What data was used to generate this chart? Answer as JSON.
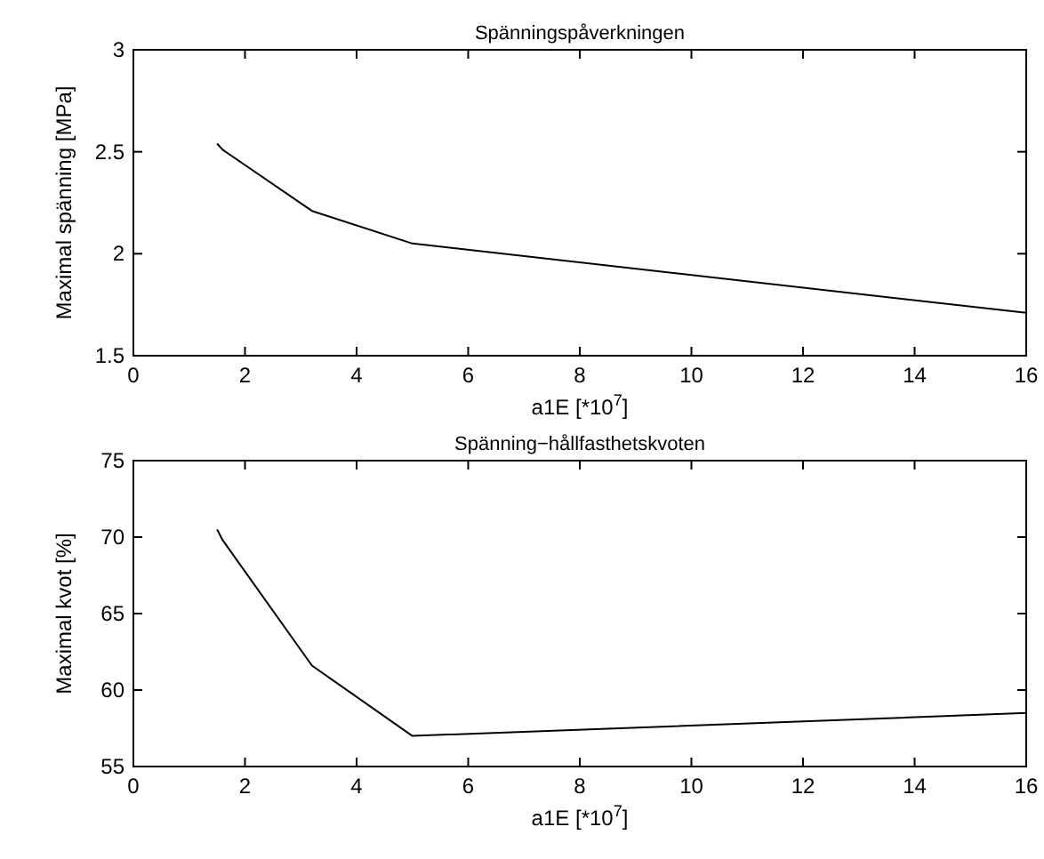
{
  "chart_data": [
    {
      "type": "line",
      "title": "Spänningspåverkningen",
      "xlabel": "a1E [*10$^{7}$]",
      "ylabel": "Maximal spänning [MPa]",
      "x": [
        1.5,
        1.6,
        3.2,
        5,
        16
      ],
      "series": [
        {
          "color": "#000000",
          "values": [
            2.54,
            2.51,
            2.21,
            2.05,
            1.71
          ]
        }
      ],
      "xlim": [
        0,
        16
      ],
      "xticks": [
        0,
        2,
        4,
        6,
        8,
        10,
        12,
        14,
        16
      ],
      "ylim": [
        1.5,
        3
      ],
      "yticks": [
        1.5,
        2,
        2.5,
        3
      ],
      "grid": false
    },
    {
      "type": "line",
      "title": "Spänning−hållfasthetskvoten",
      "xlabel": "a1E [*10$^{7}$]",
      "ylabel": "Maximal kvot [%]",
      "x": [
        1.5,
        1.6,
        3.2,
        5,
        16
      ],
      "series": [
        {
          "color": "#000000",
          "values": [
            70.5,
            69.8,
            61.6,
            57,
            58.5
          ]
        }
      ],
      "xlim": [
        0,
        16
      ],
      "xticks": [
        0,
        2,
        4,
        6,
        8,
        10,
        12,
        14,
        16
      ],
      "ylim": [
        55,
        75
      ],
      "yticks": [
        55,
        60,
        65,
        70,
        75
      ],
      "grid": false
    }
  ]
}
